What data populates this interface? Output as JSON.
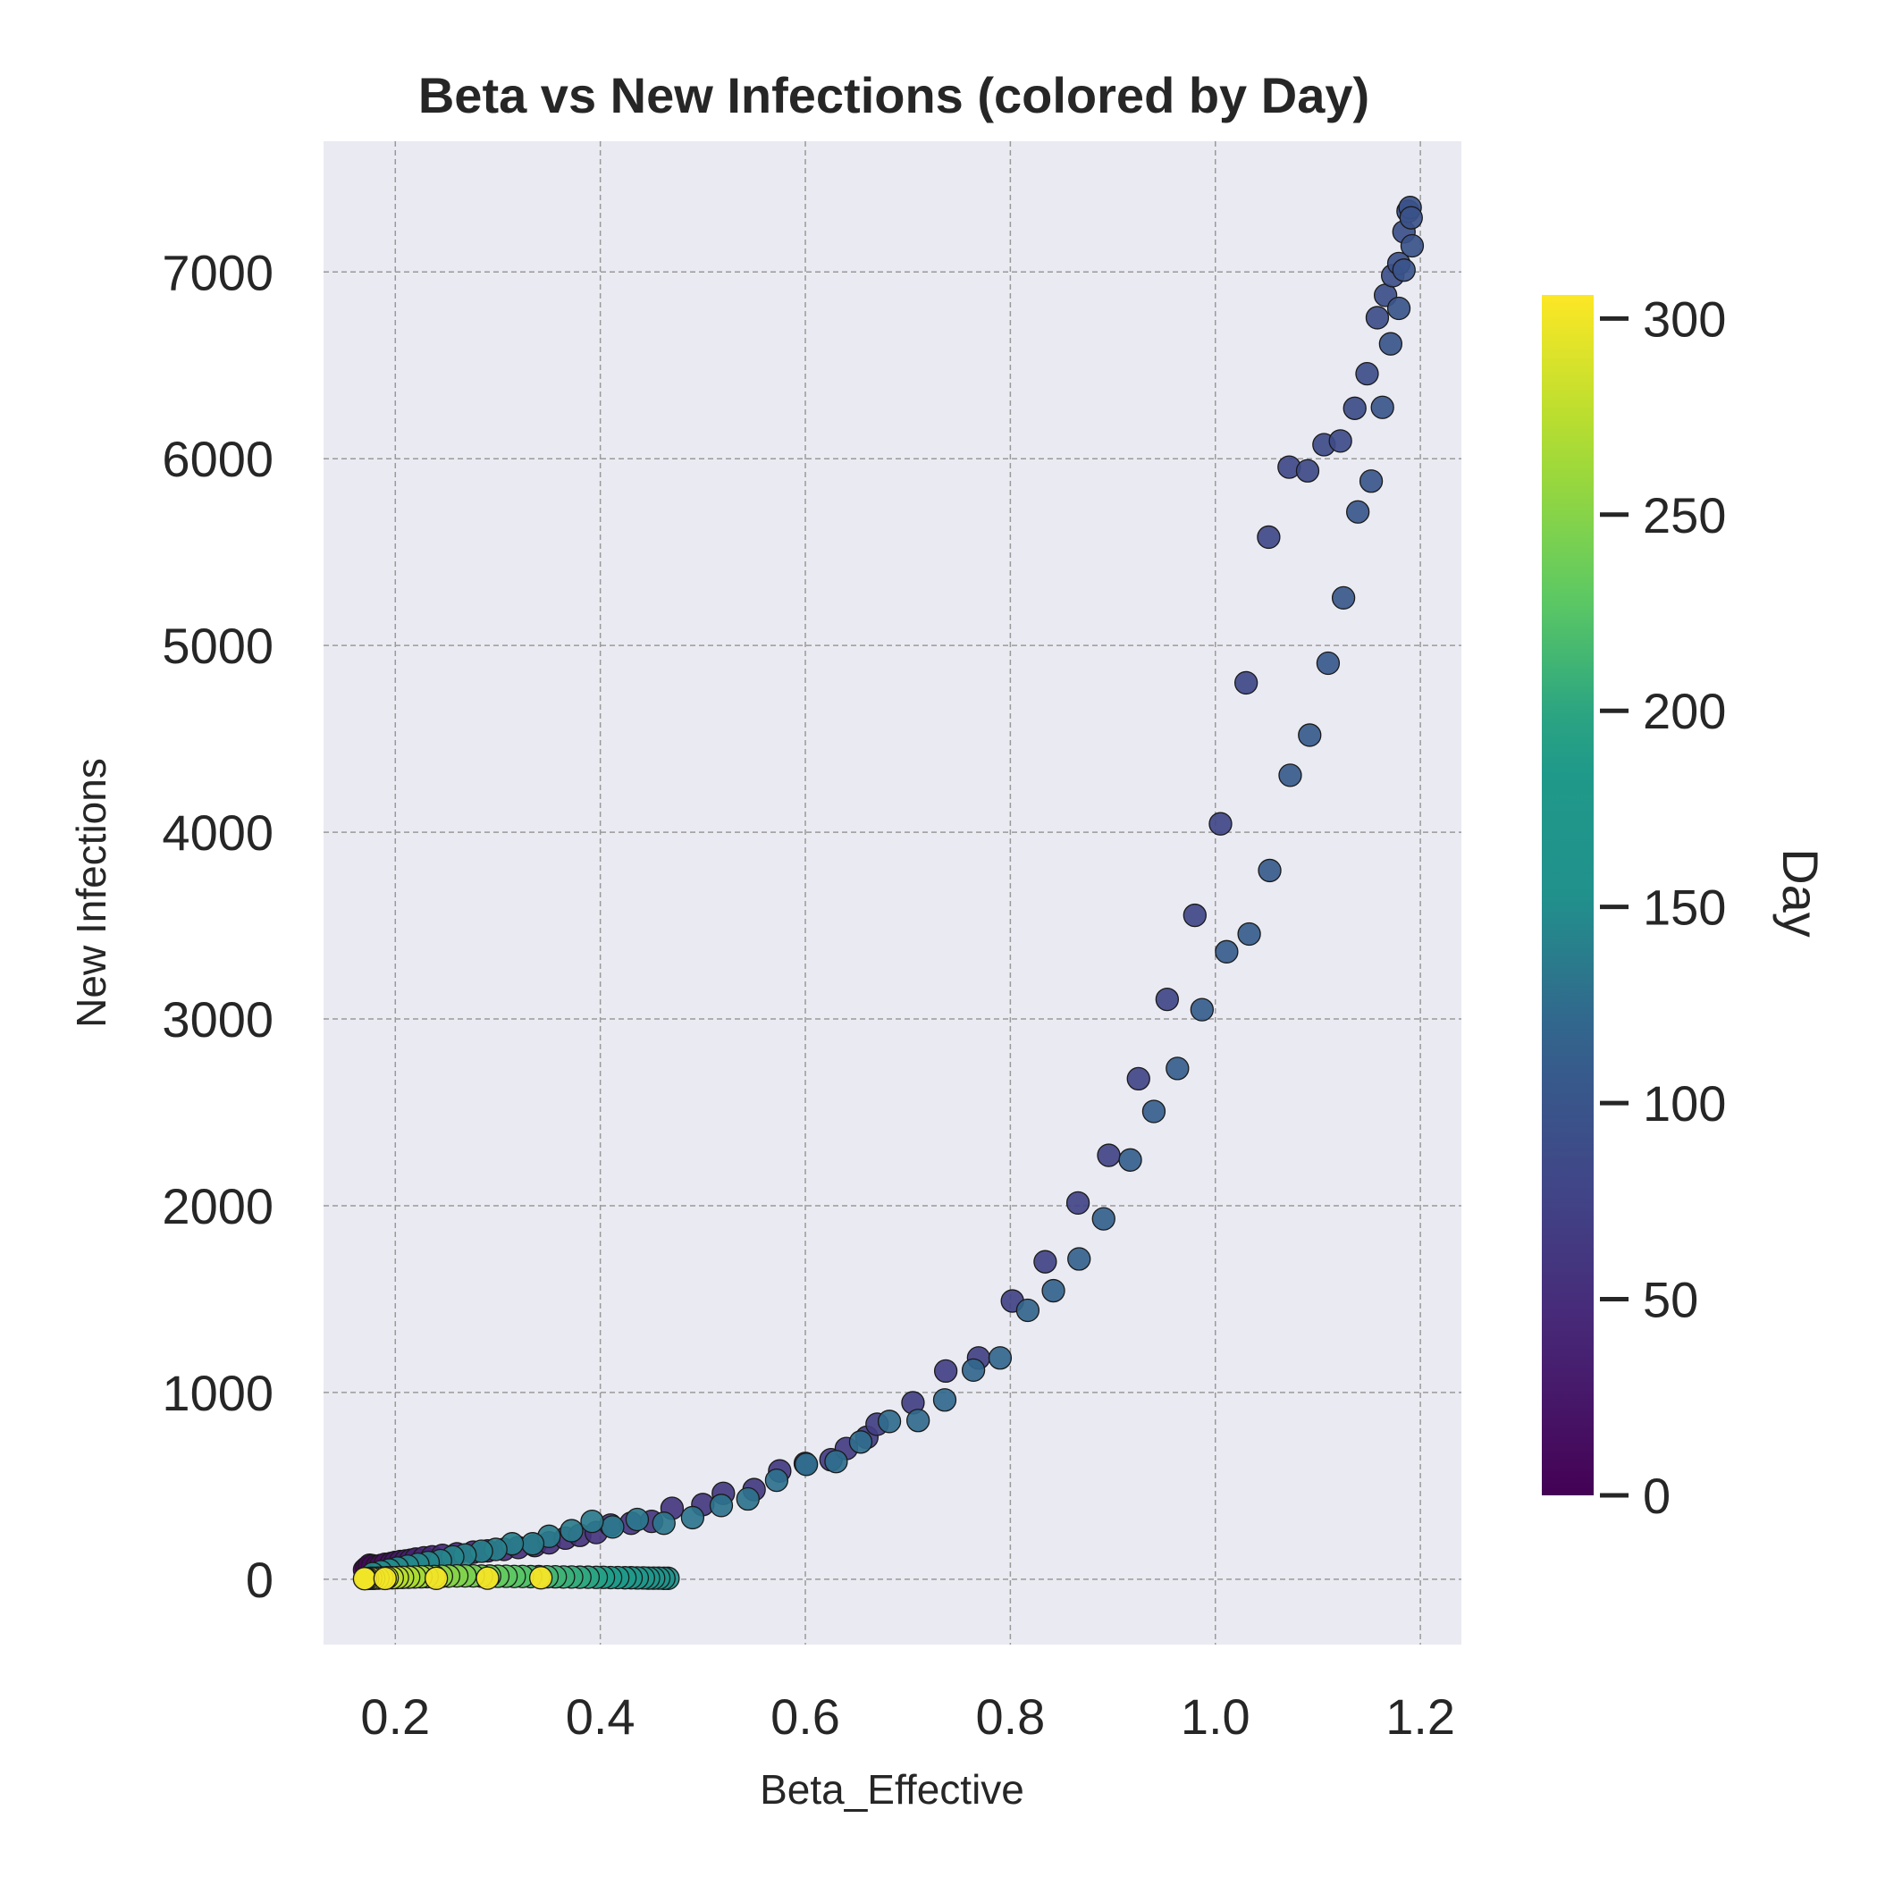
{
  "chart_data": {
    "type": "scatter",
    "title": "Beta vs New Infections (colored by Day)",
    "xlabel": "Beta_Effective",
    "ylabel": "New Infections",
    "xlim": [
      0.13,
      1.24
    ],
    "ylim": [
      -350,
      7700
    ],
    "xticks": [
      "0.2",
      "0.4",
      "0.6",
      "0.8",
      "1.0",
      "1.2"
    ],
    "yticks": [
      "0",
      "1000",
      "2000",
      "3000",
      "4000",
      "5000",
      "6000",
      "7000"
    ],
    "grid": true,
    "colormap": "viridis",
    "colorbar": {
      "label": "Day",
      "range": [
        0,
        306
      ],
      "ticks": [
        "0",
        "50",
        "100",
        "150",
        "200",
        "250",
        "300"
      ]
    },
    "points": [
      [
        0.17,
        50,
        0
      ],
      [
        0.172,
        60,
        3
      ],
      [
        0.175,
        75,
        6
      ],
      [
        0.178,
        72,
        9
      ],
      [
        0.182,
        68,
        12
      ],
      [
        0.186,
        74,
        15
      ],
      [
        0.19,
        80,
        18
      ],
      [
        0.196,
        85,
        21
      ],
      [
        0.2,
        90,
        24
      ],
      [
        0.205,
        95,
        27
      ],
      [
        0.21,
        98,
        30
      ],
      [
        0.215,
        102,
        33
      ],
      [
        0.22,
        108,
        36
      ],
      [
        0.228,
        115,
        38
      ],
      [
        0.236,
        120,
        40
      ],
      [
        0.246,
        128,
        42
      ],
      [
        0.26,
        136,
        44
      ],
      [
        0.276,
        145,
        46
      ],
      [
        0.29,
        152,
        48
      ],
      [
        0.306,
        160,
        50
      ],
      [
        0.32,
        170,
        52
      ],
      [
        0.336,
        180,
        53
      ],
      [
        0.35,
        195,
        54
      ],
      [
        0.366,
        220,
        55
      ],
      [
        0.38,
        235,
        56
      ],
      [
        0.396,
        250,
        57
      ],
      [
        0.41,
        290,
        58
      ],
      [
        0.43,
        300,
        59
      ],
      [
        0.45,
        310,
        60
      ],
      [
        0.47,
        380,
        61
      ],
      [
        0.5,
        400,
        62
      ],
      [
        0.52,
        460,
        63
      ],
      [
        0.55,
        480,
        64
      ],
      [
        0.575,
        580,
        65
      ],
      [
        0.6,
        620,
        66
      ],
      [
        0.625,
        640,
        67
      ],
      [
        0.64,
        700,
        68
      ],
      [
        0.66,
        760,
        69
      ],
      [
        0.67,
        830,
        70
      ],
      [
        0.705,
        945,
        71
      ],
      [
        0.737,
        1115,
        72
      ],
      [
        0.769,
        1185,
        73
      ],
      [
        0.802,
        1490,
        74
      ],
      [
        0.834,
        1700,
        75
      ],
      [
        0.866,
        2015,
        76
      ],
      [
        0.896,
        2270,
        77
      ],
      [
        0.925,
        2680,
        78
      ],
      [
        0.953,
        3105,
        79
      ],
      [
        0.98,
        3555,
        80
      ],
      [
        1.005,
        4045,
        81
      ],
      [
        1.03,
        4800,
        82
      ],
      [
        1.052,
        5580,
        83
      ],
      [
        1.072,
        5955,
        84
      ],
      [
        1.09,
        5935,
        85
      ],
      [
        1.106,
        6075,
        86
      ],
      [
        1.122,
        6095,
        87
      ],
      [
        1.136,
        6270,
        88
      ],
      [
        1.148,
        6455,
        89
      ],
      [
        1.158,
        6755,
        90
      ],
      [
        1.166,
        6875,
        91
      ],
      [
        1.173,
        6980,
        92
      ],
      [
        1.179,
        7045,
        93
      ],
      [
        1.184,
        7215,
        94
      ],
      [
        1.188,
        7325,
        95
      ],
      [
        1.19,
        7345,
        96
      ],
      [
        1.191,
        7290,
        97
      ],
      [
        1.192,
        7140,
        98
      ],
      [
        1.184,
        7010,
        99
      ],
      [
        1.179,
        6805,
        100
      ],
      [
        1.171,
        6615,
        101
      ],
      [
        1.163,
        6275,
        102
      ],
      [
        1.152,
        5880,
        103
      ],
      [
        1.139,
        5715,
        104
      ],
      [
        1.125,
        5255,
        105
      ],
      [
        1.11,
        4905,
        106
      ],
      [
        1.092,
        4520,
        107
      ],
      [
        1.073,
        4305,
        108
      ],
      [
        1.053,
        3795,
        109
      ],
      [
        1.033,
        3455,
        110
      ],
      [
        1.011,
        3360,
        111
      ],
      [
        0.987,
        3050,
        112
      ],
      [
        0.963,
        2735,
        113
      ],
      [
        0.94,
        2505,
        114
      ],
      [
        0.917,
        2245,
        115
      ],
      [
        0.891,
        1930,
        116
      ],
      [
        0.867,
        1715,
        117
      ],
      [
        0.842,
        1545,
        118
      ],
      [
        0.817,
        1440,
        119
      ],
      [
        0.79,
        1185,
        120
      ],
      [
        0.764,
        1120,
        121
      ],
      [
        0.736,
        960,
        122
      ],
      [
        0.71,
        850,
        123
      ],
      [
        0.682,
        845,
        124
      ],
      [
        0.654,
        735,
        125
      ],
      [
        0.63,
        630,
        126
      ],
      [
        0.601,
        615,
        127
      ],
      [
        0.572,
        530,
        128
      ],
      [
        0.544,
        430,
        129
      ],
      [
        0.518,
        395,
        130
      ],
      [
        0.49,
        330,
        131
      ],
      [
        0.462,
        300,
        132
      ],
      [
        0.436,
        320,
        133
      ],
      [
        0.412,
        280,
        134
      ],
      [
        0.392,
        310,
        135
      ],
      [
        0.372,
        260,
        136
      ],
      [
        0.35,
        230,
        137
      ],
      [
        0.334,
        190,
        138
      ],
      [
        0.314,
        190,
        139
      ],
      [
        0.298,
        160,
        140
      ],
      [
        0.284,
        150,
        141
      ],
      [
        0.268,
        130,
        142
      ],
      [
        0.256,
        120,
        143
      ],
      [
        0.244,
        100,
        144
      ],
      [
        0.232,
        90,
        145
      ],
      [
        0.222,
        80,
        146
      ],
      [
        0.212,
        70,
        147
      ],
      [
        0.202,
        60,
        148
      ],
      [
        0.194,
        50,
        149
      ],
      [
        0.186,
        40,
        150
      ],
      [
        0.178,
        30,
        151
      ],
      [
        0.466,
        5,
        160
      ],
      [
        0.462,
        5,
        163
      ],
      [
        0.457,
        6,
        166
      ],
      [
        0.452,
        6,
        169
      ],
      [
        0.447,
        6,
        172
      ],
      [
        0.442,
        7,
        175
      ],
      [
        0.436,
        7,
        178
      ],
      [
        0.43,
        8,
        181
      ],
      [
        0.424,
        8,
        184
      ],
      [
        0.417,
        9,
        187
      ],
      [
        0.41,
        9,
        190
      ],
      [
        0.403,
        10,
        193
      ],
      [
        0.396,
        10,
        196
      ],
      [
        0.388,
        11,
        199
      ],
      [
        0.38,
        11,
        202
      ],
      [
        0.372,
        12,
        205
      ],
      [
        0.364,
        12,
        208
      ],
      [
        0.356,
        13,
        211
      ],
      [
        0.348,
        13,
        214
      ],
      [
        0.34,
        14,
        217
      ],
      [
        0.332,
        14,
        220
      ],
      [
        0.324,
        15,
        223
      ],
      [
        0.316,
        15,
        226
      ],
      [
        0.308,
        16,
        229
      ],
      [
        0.3,
        16,
        232
      ],
      [
        0.292,
        17,
        235
      ],
      [
        0.284,
        17,
        238
      ],
      [
        0.276,
        18,
        241
      ],
      [
        0.268,
        18,
        244
      ],
      [
        0.26,
        18,
        247
      ],
      [
        0.252,
        17,
        250
      ],
      [
        0.245,
        16,
        253
      ],
      [
        0.238,
        15,
        256
      ],
      [
        0.231,
        14,
        259
      ],
      [
        0.225,
        13,
        262
      ],
      [
        0.219,
        12,
        265
      ],
      [
        0.213,
        11,
        268
      ],
      [
        0.207,
        10,
        271
      ],
      [
        0.202,
        9,
        274
      ],
      [
        0.197,
        8,
        277
      ],
      [
        0.192,
        8,
        280
      ],
      [
        0.187,
        7,
        283
      ],
      [
        0.183,
        6,
        286
      ],
      [
        0.179,
        5,
        289
      ],
      [
        0.176,
        5,
        292
      ],
      [
        0.173,
        4,
        295
      ],
      [
        0.171,
        4,
        298
      ],
      [
        0.17,
        3,
        300
      ],
      [
        0.19,
        4,
        302
      ],
      [
        0.24,
        5,
        303
      ],
      [
        0.29,
        6,
        304
      ],
      [
        0.342,
        8,
        306
      ]
    ]
  }
}
